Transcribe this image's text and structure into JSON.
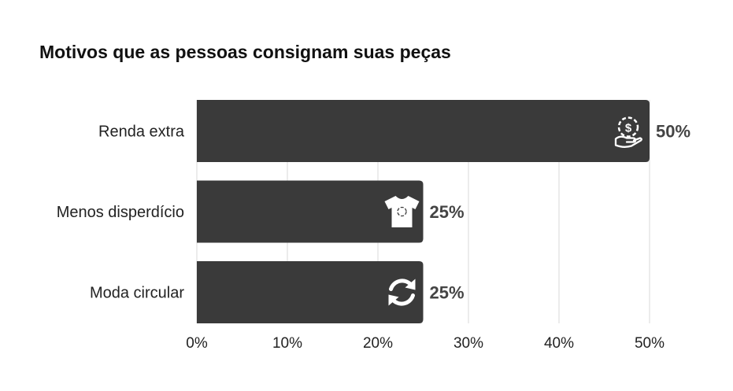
{
  "chart_data": {
    "type": "bar",
    "orientation": "horizontal",
    "title": "Motivos que as pessoas consignam suas peças",
    "categories": [
      "Renda extra",
      "Menos disperdício",
      "Moda circular"
    ],
    "values": [
      50,
      25,
      25
    ],
    "value_labels": [
      "50%",
      "25%",
      "25%"
    ],
    "icons": [
      "money-hand-icon",
      "recycle-tshirt-icon",
      "refresh-arrows-icon"
    ],
    "xlim": [
      0,
      50
    ],
    "xticks": [
      0,
      10,
      20,
      30,
      40,
      50
    ],
    "xtick_labels": [
      "0%",
      "10%",
      "20%",
      "30%",
      "40%",
      "50%"
    ],
    "grid": true,
    "bar_color": "#3a3a3a",
    "icon_color": "#ffffff"
  }
}
